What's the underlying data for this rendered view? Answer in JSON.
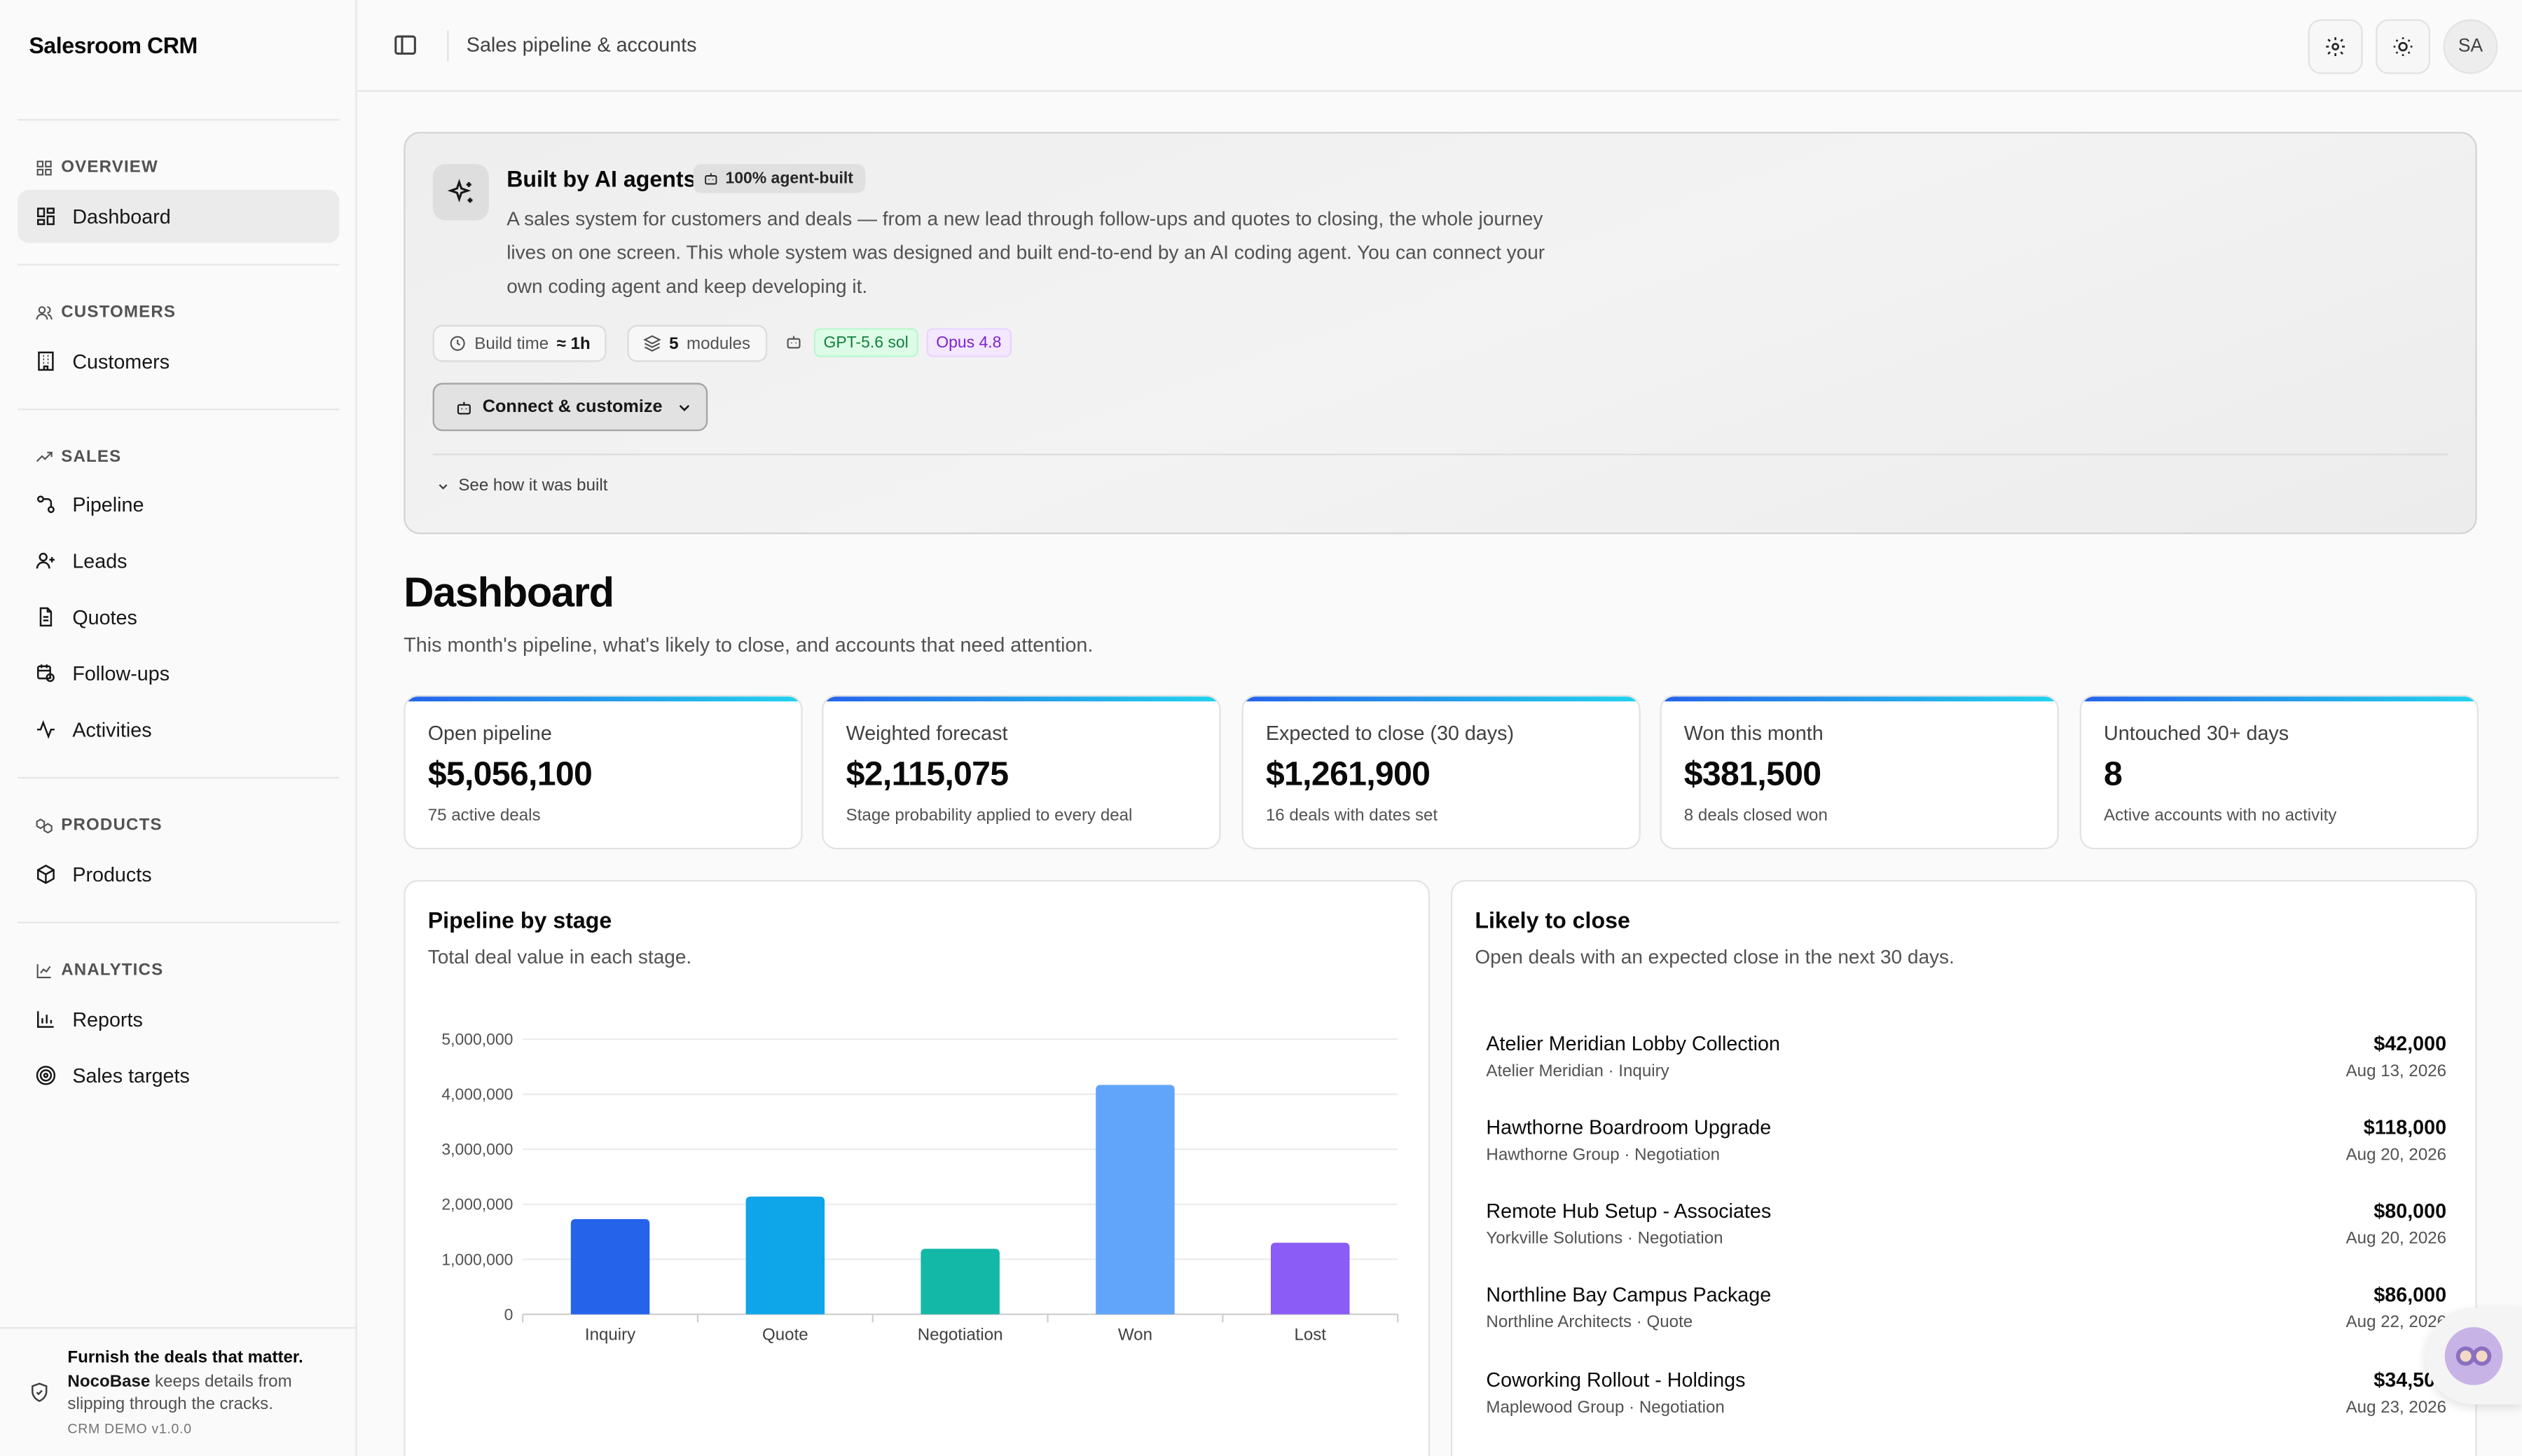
{
  "app": {
    "title": "Salesroom CRM"
  },
  "sidebar": {
    "sections": [
      {
        "label": "OVERVIEW",
        "items": [
          {
            "label": "Dashboard",
            "active": true
          }
        ]
      },
      {
        "label": "CUSTOMERS",
        "items": [
          {
            "label": "Customers"
          }
        ]
      },
      {
        "label": "SALES",
        "items": [
          {
            "label": "Pipeline"
          },
          {
            "label": "Leads"
          },
          {
            "label": "Quotes"
          },
          {
            "label": "Follow-ups"
          },
          {
            "label": "Activities"
          }
        ]
      },
      {
        "label": "PRODUCTS",
        "items": [
          {
            "label": "Products"
          }
        ]
      },
      {
        "label": "ANALYTICS",
        "items": [
          {
            "label": "Reports"
          },
          {
            "label": "Sales targets"
          }
        ]
      }
    ],
    "footer": {
      "title": "Furnish the deals that matter.",
      "brand": "NocoBase",
      "text": " keeps details from slipping through the cracks.",
      "version": "CRM DEMO v1.0.0"
    }
  },
  "topbar": {
    "breadcrumb": "Sales pipeline & accounts",
    "avatar": "SA"
  },
  "banner": {
    "title": "Built by AI agents",
    "badge": "100% agent-built",
    "description": "A sales system for customers and deals — from a new lead through follow-ups and quotes to closing, the whole journey lives on one screen. This whole system was designed and built end-to-end by an AI coding agent. You can connect your own coding agent and keep developing it.",
    "build_time_label": "Build time",
    "build_time_value": "≈ 1h",
    "modules_value": "5",
    "modules_label": "modules",
    "models": [
      "GPT-5.6 sol",
      "Opus 4.8"
    ],
    "connect_label": "Connect & customize",
    "see_how_label": "See how it was built"
  },
  "page": {
    "title": "Dashboard",
    "subtitle": "This month's pipeline, what's likely to close, and accounts that need attention."
  },
  "kpis": [
    {
      "label": "Open pipeline",
      "value": "$5,056,100",
      "note": "75 active deals"
    },
    {
      "label": "Weighted forecast",
      "value": "$2,115,075",
      "note": "Stage probability applied to every deal"
    },
    {
      "label": "Expected to close (30 days)",
      "value": "$1,261,900",
      "note": "16 deals with dates set"
    },
    {
      "label": "Won this month",
      "value": "$381,500",
      "note": "8 deals closed won"
    },
    {
      "label": "Untouched 30+ days",
      "value": "8",
      "note": "Active accounts with no activity"
    }
  ],
  "pipeline_card": {
    "title": "Pipeline by stage",
    "subtitle": "Total deal value in each stage."
  },
  "chart_data": {
    "type": "bar",
    "categories": [
      "Inquiry",
      "Quote",
      "Negotiation",
      "Won",
      "Lost"
    ],
    "values": [
      1730000,
      2140000,
      1190000,
      4170000,
      1300000
    ],
    "colors": [
      "#2563eb",
      "#0ea5e9",
      "#14b8a6",
      "#60a5fa",
      "#8b5cf6"
    ],
    "ylim": [
      0,
      5000000
    ],
    "yticks": [
      0,
      1000000,
      2000000,
      3000000,
      4000000,
      5000000
    ],
    "ytick_labels": [
      "0",
      "1,000,000",
      "2,000,000",
      "3,000,000",
      "4,000,000",
      "5,000,000"
    ],
    "grid": true
  },
  "likely_card": {
    "title": "Likely to close",
    "subtitle": "Open deals with an expected close in the next 30 days.",
    "items": [
      {
        "name": "Atelier Meridian Lobby Collection",
        "meta": "Atelier Meridian · Inquiry",
        "amount": "$42,000",
        "date": "Aug 13, 2026"
      },
      {
        "name": "Hawthorne Boardroom Upgrade",
        "meta": "Hawthorne Group · Negotiation",
        "amount": "$118,000",
        "date": "Aug 20, 2026"
      },
      {
        "name": "Remote Hub Setup - Associates",
        "meta": "Yorkville Solutions · Negotiation",
        "amount": "$80,000",
        "date": "Aug 20, 2026"
      },
      {
        "name": "Northline Bay Campus Package",
        "meta": "Northline Architects · Quote",
        "amount": "$86,000",
        "date": "Aug 22, 2026"
      },
      {
        "name": "Coworking Rollout - Holdings",
        "meta": "Maplewood Group · Negotiation",
        "amount": "$34,500",
        "date": "Aug 23, 2026"
      }
    ]
  }
}
